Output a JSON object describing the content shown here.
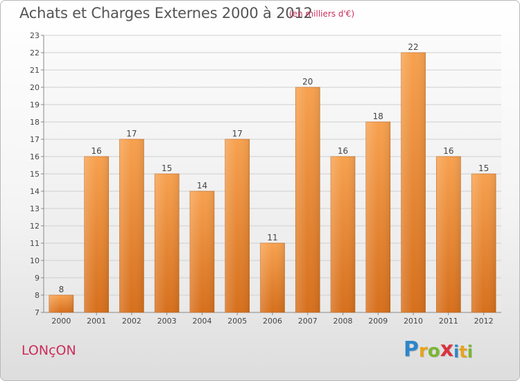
{
  "chart_data": {
    "type": "bar",
    "title": "Achats et Charges Externes 2000 à 2012",
    "unit_note": "(en milliers d'€)",
    "categories": [
      "2000",
      "2001",
      "2002",
      "2003",
      "2004",
      "2005",
      "2006",
      "2007",
      "2008",
      "2009",
      "2010",
      "2011",
      "2012"
    ],
    "values": [
      8,
      16,
      17,
      15,
      14,
      17,
      11,
      20,
      16,
      18,
      22,
      16,
      15
    ],
    "ylim": [
      7,
      23
    ],
    "yticks": [
      7,
      8,
      9,
      10,
      11,
      12,
      13,
      14,
      15,
      16,
      17,
      18,
      19,
      20,
      21,
      22,
      23
    ],
    "grid": true,
    "bar_color_top": "#f7a14f",
    "bar_color_bottom": "#d66f1c",
    "xlabel": "",
    "ylabel": ""
  },
  "footer": {
    "commune": "LONçON",
    "logo_text": "Proxiti",
    "logo_letters": [
      {
        "ch": "P",
        "color": "#2e86c9"
      },
      {
        "ch": "r",
        "color": "#e8a21b"
      },
      {
        "ch": "o",
        "color": "#7ab632"
      },
      {
        "ch": "x",
        "color": "#d8343f"
      },
      {
        "ch": "i",
        "color": "#2e86c9"
      },
      {
        "ch": "t",
        "color": "#e8a21b"
      },
      {
        "ch": "i",
        "color": "#7ab632"
      }
    ]
  },
  "colors": {
    "title": "#555555",
    "accent": "#cc2d5c"
  }
}
